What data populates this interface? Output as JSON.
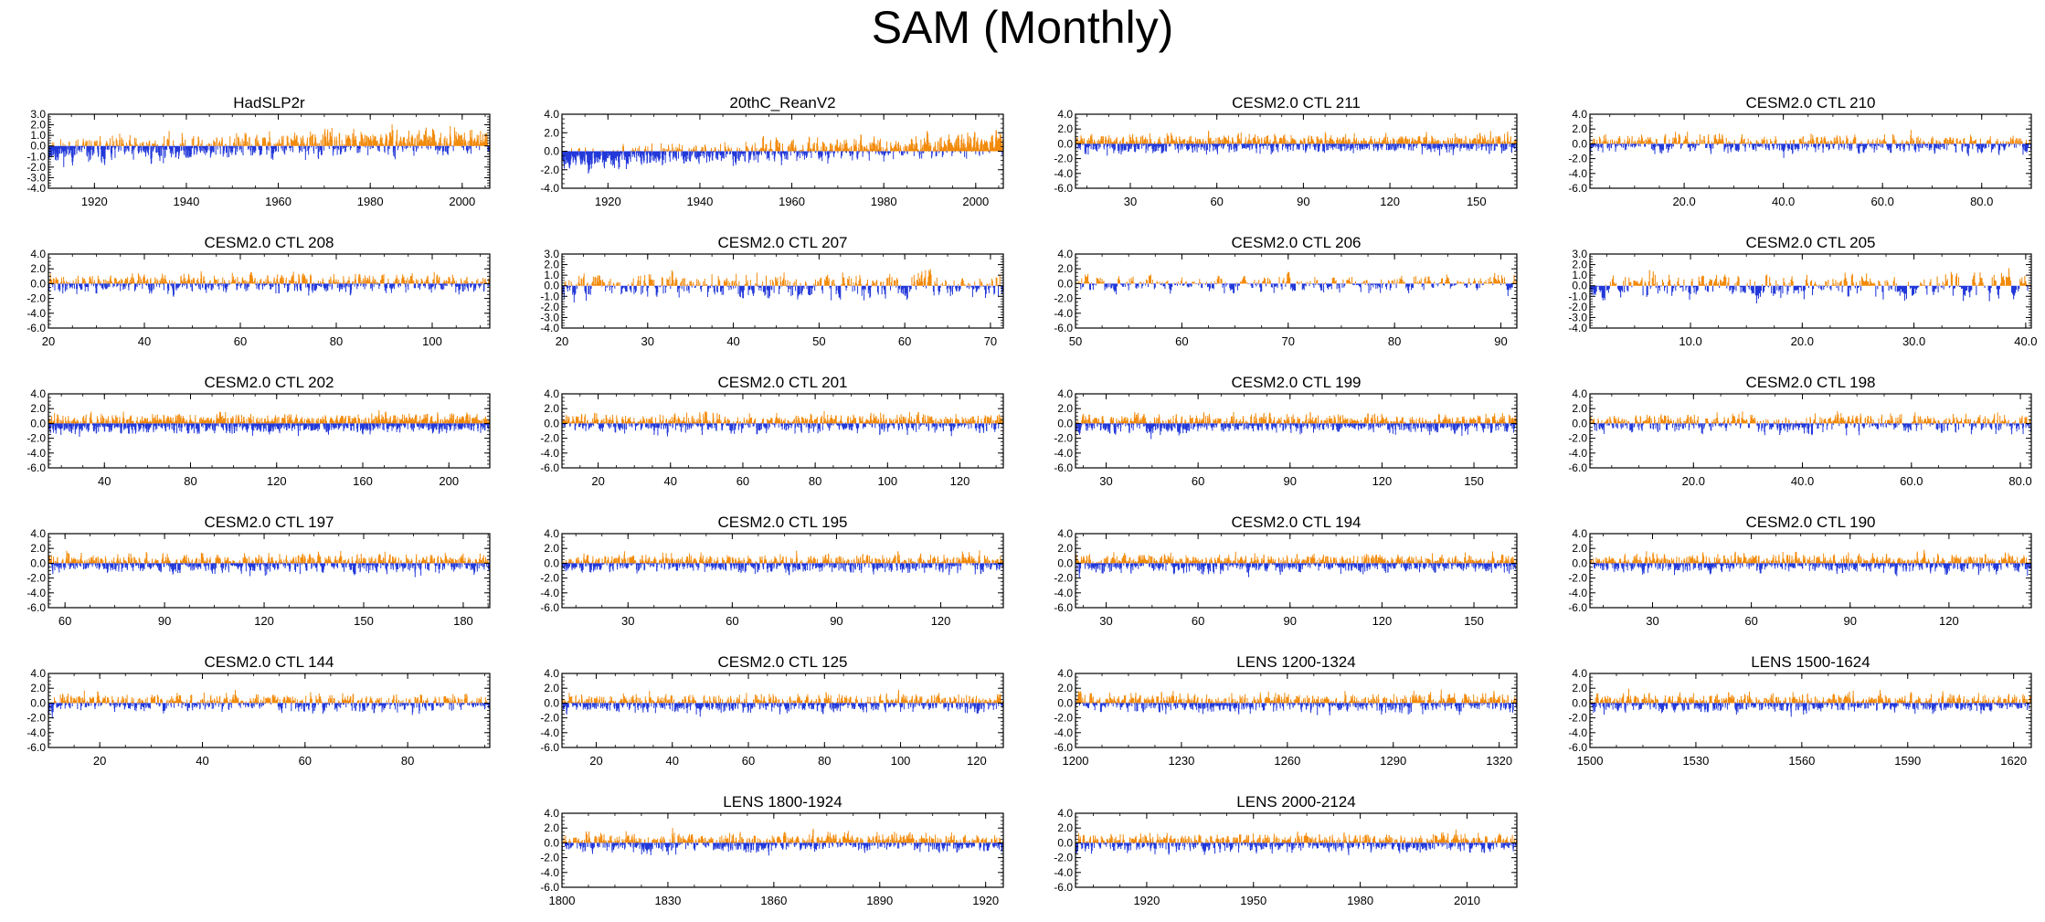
{
  "page": {
    "title": "SAM (Monthly)"
  },
  "colors": {
    "positive": "#f28a0a",
    "negative": "#2238d9",
    "frame": "#000000"
  },
  "chart_data": [
    {
      "type": "bar",
      "title": "HadSLP2r",
      "xlim": [
        1910,
        2006
      ],
      "ylim": [
        -4,
        3
      ],
      "xticks": [
        1920,
        1940,
        1960,
        1980,
        2000
      ],
      "xtick_labels": [
        "1920",
        "1940",
        "1960",
        "1980",
        "2000"
      ],
      "yticks": [
        3,
        2,
        1,
        0,
        -1,
        -2,
        -3,
        -4
      ],
      "ytick_labels": [
        "3.0",
        "2.0",
        "1.0",
        "0.0",
        "-1.0",
        "-2.0",
        "-3.0",
        "-4.0"
      ],
      "trend_range": [
        -0.5,
        0.5
      ],
      "seed": 11
    },
    {
      "type": "bar",
      "title": "20thC_ReanV2",
      "xlim": [
        1910,
        2006
      ],
      "ylim": [
        -4,
        4
      ],
      "xticks": [
        1920,
        1940,
        1960,
        1980,
        2000
      ],
      "xtick_labels": [
        "1920",
        "1940",
        "1960",
        "1980",
        "2000"
      ],
      "yticks": [
        4,
        2,
        0,
        -2,
        -4
      ],
      "ytick_labels": [
        "4.0",
        "2.0",
        "0.0",
        "-2.0",
        "-4.0"
      ],
      "trend_range": [
        -0.8,
        0.8
      ],
      "seed": 23
    },
    {
      "type": "bar",
      "title": "CESM2.0 CTL 211",
      "xlim": [
        11,
        164
      ],
      "ylim": [
        -6,
        4
      ],
      "xticks": [
        30,
        60,
        90,
        120,
        150
      ],
      "xtick_labels": [
        "30",
        "60",
        "90",
        "120",
        "150"
      ],
      "yticks": [
        4,
        2,
        0,
        -2,
        -4,
        -6
      ],
      "ytick_labels": [
        "4.0",
        "2.0",
        "0.0",
        "-2.0",
        "-4.0",
        "-6.0"
      ],
      "seed": 31
    },
    {
      "type": "bar",
      "title": "CESM2.0 CTL 210",
      "xlim": [
        1,
        90
      ],
      "ylim": [
        -6,
        4
      ],
      "xticks": [
        20,
        40,
        60,
        80
      ],
      "xtick_labels": [
        "20.0",
        "40.0",
        "60.0",
        "80.0"
      ],
      "yticks": [
        4,
        2,
        0,
        -2,
        -4,
        -6
      ],
      "ytick_labels": [
        "4.0",
        "2.0",
        "0.0",
        "-2.0",
        "-4.0",
        "-6.0"
      ],
      "seed": 37
    },
    {
      "type": "bar",
      "title": "CESM2.0 CTL 208",
      "xlim": [
        20,
        112
      ],
      "ylim": [
        -6,
        4
      ],
      "xticks": [
        20,
        40,
        60,
        80,
        100
      ],
      "xtick_labels": [
        "20",
        "40",
        "60",
        "80",
        "100"
      ],
      "yticks": [
        4,
        2,
        0,
        -2,
        -4,
        -6
      ],
      "ytick_labels": [
        "4.0",
        "2.0",
        "0.0",
        "-2.0",
        "-4.0",
        "-6.0"
      ],
      "seed": 41
    },
    {
      "type": "bar",
      "title": "CESM2.0 CTL 207",
      "xlim": [
        20,
        71.5
      ],
      "ylim": [
        -4,
        3
      ],
      "xticks": [
        20,
        30,
        40,
        50,
        60,
        70
      ],
      "xtick_labels": [
        "20",
        "30",
        "40",
        "50",
        "60",
        "70"
      ],
      "yticks": [
        3,
        2,
        1,
        0,
        -1,
        -2,
        -3,
        -4
      ],
      "ytick_labels": [
        "3.0",
        "2.0",
        "1.0",
        "0.0",
        "-1.0",
        "-2.0",
        "-3.0",
        "-4.0"
      ],
      "seed": 43
    },
    {
      "type": "bar",
      "title": "CESM2.0 CTL 206",
      "xlim": [
        50,
        91.5
      ],
      "ylim": [
        -6,
        4
      ],
      "xticks": [
        50,
        60,
        70,
        80,
        90
      ],
      "xtick_labels": [
        "50",
        "60",
        "70",
        "80",
        "90"
      ],
      "yticks": [
        4,
        2,
        0,
        -2,
        -4,
        -6
      ],
      "ytick_labels": [
        "4.0",
        "2.0",
        "0.0",
        "-2.0",
        "-4.0",
        "-6.0"
      ],
      "seed": 47
    },
    {
      "type": "bar",
      "title": "CESM2.0 CTL 205",
      "xlim": [
        1,
        40.5
      ],
      "ylim": [
        -4,
        3
      ],
      "xticks": [
        10,
        20,
        30,
        40
      ],
      "xtick_labels": [
        "10.0",
        "20.0",
        "30.0",
        "40.0"
      ],
      "yticks": [
        3,
        2,
        1,
        0,
        -1,
        -2,
        -3,
        -4
      ],
      "ytick_labels": [
        "3.0",
        "2.0",
        "1.0",
        "0.0",
        "-1.0",
        "-2.0",
        "-3.0",
        "-4.0"
      ],
      "seed": 53
    },
    {
      "type": "bar",
      "title": "CESM2.0 CTL 202",
      "xlim": [
        14,
        219
      ],
      "ylim": [
        -6,
        4
      ],
      "xticks": [
        40,
        80,
        120,
        160,
        200
      ],
      "xtick_labels": [
        "40",
        "80",
        "120",
        "160",
        "200"
      ],
      "yticks": [
        4,
        2,
        0,
        -2,
        -4,
        -6
      ],
      "ytick_labels": [
        "4.0",
        "2.0",
        "0.0",
        "-2.0",
        "-4.0",
        "-6.0"
      ],
      "seed": 59
    },
    {
      "type": "bar",
      "title": "CESM2.0 CTL 201",
      "xlim": [
        10,
        132
      ],
      "ylim": [
        -6,
        4
      ],
      "xticks": [
        20,
        40,
        60,
        80,
        100,
        120
      ],
      "xtick_labels": [
        "20",
        "40",
        "60",
        "80",
        "100",
        "120"
      ],
      "yticks": [
        4,
        2,
        0,
        -2,
        -4,
        -6
      ],
      "ytick_labels": [
        "4.0",
        "2.0",
        "0.0",
        "-2.0",
        "-4.0",
        "-6.0"
      ],
      "seed": 61
    },
    {
      "type": "bar",
      "title": "CESM2.0 CTL 199",
      "xlim": [
        20,
        164
      ],
      "ylim": [
        -6,
        4
      ],
      "xticks": [
        30,
        60,
        90,
        120,
        150
      ],
      "xtick_labels": [
        "30",
        "60",
        "90",
        "120",
        "150"
      ],
      "yticks": [
        4,
        2,
        0,
        -2,
        -4,
        -6
      ],
      "ytick_labels": [
        "4.0",
        "2.0",
        "0.0",
        "-2.0",
        "-4.0",
        "-6.0"
      ],
      "seed": 67
    },
    {
      "type": "bar",
      "title": "CESM2.0 CTL 198",
      "xlim": [
        1,
        82
      ],
      "ylim": [
        -6,
        4
      ],
      "xticks": [
        20,
        40,
        60,
        80
      ],
      "xtick_labels": [
        "20.0",
        "40.0",
        "60.0",
        "80.0"
      ],
      "yticks": [
        4,
        2,
        0,
        -2,
        -4,
        -6
      ],
      "ytick_labels": [
        "4.0",
        "2.0",
        "0.0",
        "-2.0",
        "-4.0",
        "-6.0"
      ],
      "seed": 71
    },
    {
      "type": "bar",
      "title": "CESM2.0 CTL 197",
      "xlim": [
        55,
        188
      ],
      "ylim": [
        -6,
        4
      ],
      "xticks": [
        60,
        90,
        120,
        150,
        180
      ],
      "xtick_labels": [
        "60",
        "90",
        "120",
        "150",
        "180"
      ],
      "yticks": [
        4,
        2,
        0,
        -2,
        -4,
        -6
      ],
      "ytick_labels": [
        "4.0",
        "2.0",
        "0.0",
        "-2.0",
        "-4.0",
        "-6.0"
      ],
      "seed": 73
    },
    {
      "type": "bar",
      "title": "CESM2.0 CTL 195",
      "xlim": [
        11,
        138
      ],
      "ylim": [
        -6,
        4
      ],
      "xticks": [
        30,
        60,
        90,
        120
      ],
      "xtick_labels": [
        "30",
        "60",
        "90",
        "120"
      ],
      "yticks": [
        4,
        2,
        0,
        -2,
        -4,
        -6
      ],
      "ytick_labels": [
        "4.0",
        "2.0",
        "0.0",
        "-2.0",
        "-4.0",
        "-6.0"
      ],
      "seed": 79
    },
    {
      "type": "bar",
      "title": "CESM2.0 CTL 194",
      "xlim": [
        20,
        164
      ],
      "ylim": [
        -6,
        4
      ],
      "xticks": [
        30,
        60,
        90,
        120,
        150
      ],
      "xtick_labels": [
        "30",
        "60",
        "90",
        "120",
        "150"
      ],
      "yticks": [
        4,
        2,
        0,
        -2,
        -4,
        -6
      ],
      "ytick_labels": [
        "4.0",
        "2.0",
        "0.0",
        "-2.0",
        "-4.0",
        "-6.0"
      ],
      "seed": 83
    },
    {
      "type": "bar",
      "title": "CESM2.0 CTL 190",
      "xlim": [
        11,
        145
      ],
      "ylim": [
        -6,
        4
      ],
      "xticks": [
        30,
        60,
        90,
        120
      ],
      "xtick_labels": [
        "30",
        "60",
        "90",
        "120"
      ],
      "yticks": [
        4,
        2,
        0,
        -2,
        -4,
        -6
      ],
      "ytick_labels": [
        "4.0",
        "2.0",
        "0.0",
        "-2.0",
        "-4.0",
        "-6.0"
      ],
      "seed": 89
    },
    {
      "type": "bar",
      "title": "CESM2.0 CTL 144",
      "xlim": [
        10,
        96
      ],
      "ylim": [
        -6,
        4
      ],
      "xticks": [
        20,
        40,
        60,
        80
      ],
      "xtick_labels": [
        "20",
        "40",
        "60",
        "80"
      ],
      "yticks": [
        4,
        2,
        0,
        -2,
        -4,
        -6
      ],
      "ytick_labels": [
        "4.0",
        "2.0",
        "0.0",
        "-2.0",
        "-4.0",
        "-6.0"
      ],
      "seed": 97
    },
    {
      "type": "bar",
      "title": "CESM2.0 CTL 125",
      "xlim": [
        11,
        127
      ],
      "ylim": [
        -6,
        4
      ],
      "xticks": [
        20,
        40,
        60,
        80,
        100,
        120
      ],
      "xtick_labels": [
        "20",
        "40",
        "60",
        "80",
        "100",
        "120"
      ],
      "yticks": [
        4,
        2,
        0,
        -2,
        -4,
        -6
      ],
      "ytick_labels": [
        "4.0",
        "2.0",
        "0.0",
        "-2.0",
        "-4.0",
        "-6.0"
      ],
      "seed": 101
    },
    {
      "type": "bar",
      "title": "LENS 1200-1324",
      "xlim": [
        1200,
        1325
      ],
      "ylim": [
        -6,
        4
      ],
      "xticks": [
        1200,
        1230,
        1260,
        1290,
        1320
      ],
      "xtick_labels": [
        "1200",
        "1230",
        "1260",
        "1290",
        "1320"
      ],
      "yticks": [
        4,
        2,
        0,
        -2,
        -4,
        -6
      ],
      "ytick_labels": [
        "4.0",
        "2.0",
        "0.0",
        "-2.0",
        "-4.0",
        "-6.0"
      ],
      "seed": 103
    },
    {
      "type": "bar",
      "title": "LENS 1500-1624",
      "xlim": [
        1500,
        1625
      ],
      "ylim": [
        -6,
        4
      ],
      "xticks": [
        1500,
        1530,
        1560,
        1590,
        1620
      ],
      "xtick_labels": [
        "1500",
        "1530",
        "1560",
        "1590",
        "1620"
      ],
      "yticks": [
        4,
        2,
        0,
        -2,
        -4,
        -6
      ],
      "ytick_labels": [
        "4.0",
        "2.0",
        "0.0",
        "-2.0",
        "-4.0",
        "-6.0"
      ],
      "seed": 107
    },
    {
      "type": "bar",
      "title": "LENS 1800-1924",
      "xlim": [
        1800,
        1925
      ],
      "ylim": [
        -6,
        4
      ],
      "xticks": [
        1800,
        1830,
        1860,
        1890,
        1920
      ],
      "xtick_labels": [
        "1800",
        "1830",
        "1860",
        "1890",
        "1920"
      ],
      "yticks": [
        4,
        2,
        0,
        -2,
        -4,
        -6
      ],
      "ytick_labels": [
        "4.0",
        "2.0",
        "0.0",
        "-2.0",
        "-4.0",
        "-6.0"
      ],
      "seed": 109
    },
    {
      "type": "bar",
      "title": "LENS 2000-2124",
      "xlim": [
        1900,
        2024
      ],
      "ylim": [
        -6,
        4
      ],
      "xticks": [
        1920,
        1950,
        1980,
        2010
      ],
      "xtick_labels": [
        "1920",
        "1950",
        "1980",
        "2010"
      ],
      "yticks": [
        4,
        2,
        0,
        -2,
        -4,
        -6
      ],
      "ytick_labels": [
        "4.0",
        "2.0",
        "0.0",
        "-2.0",
        "-4.0",
        "-6.0"
      ],
      "seed": 113
    }
  ]
}
